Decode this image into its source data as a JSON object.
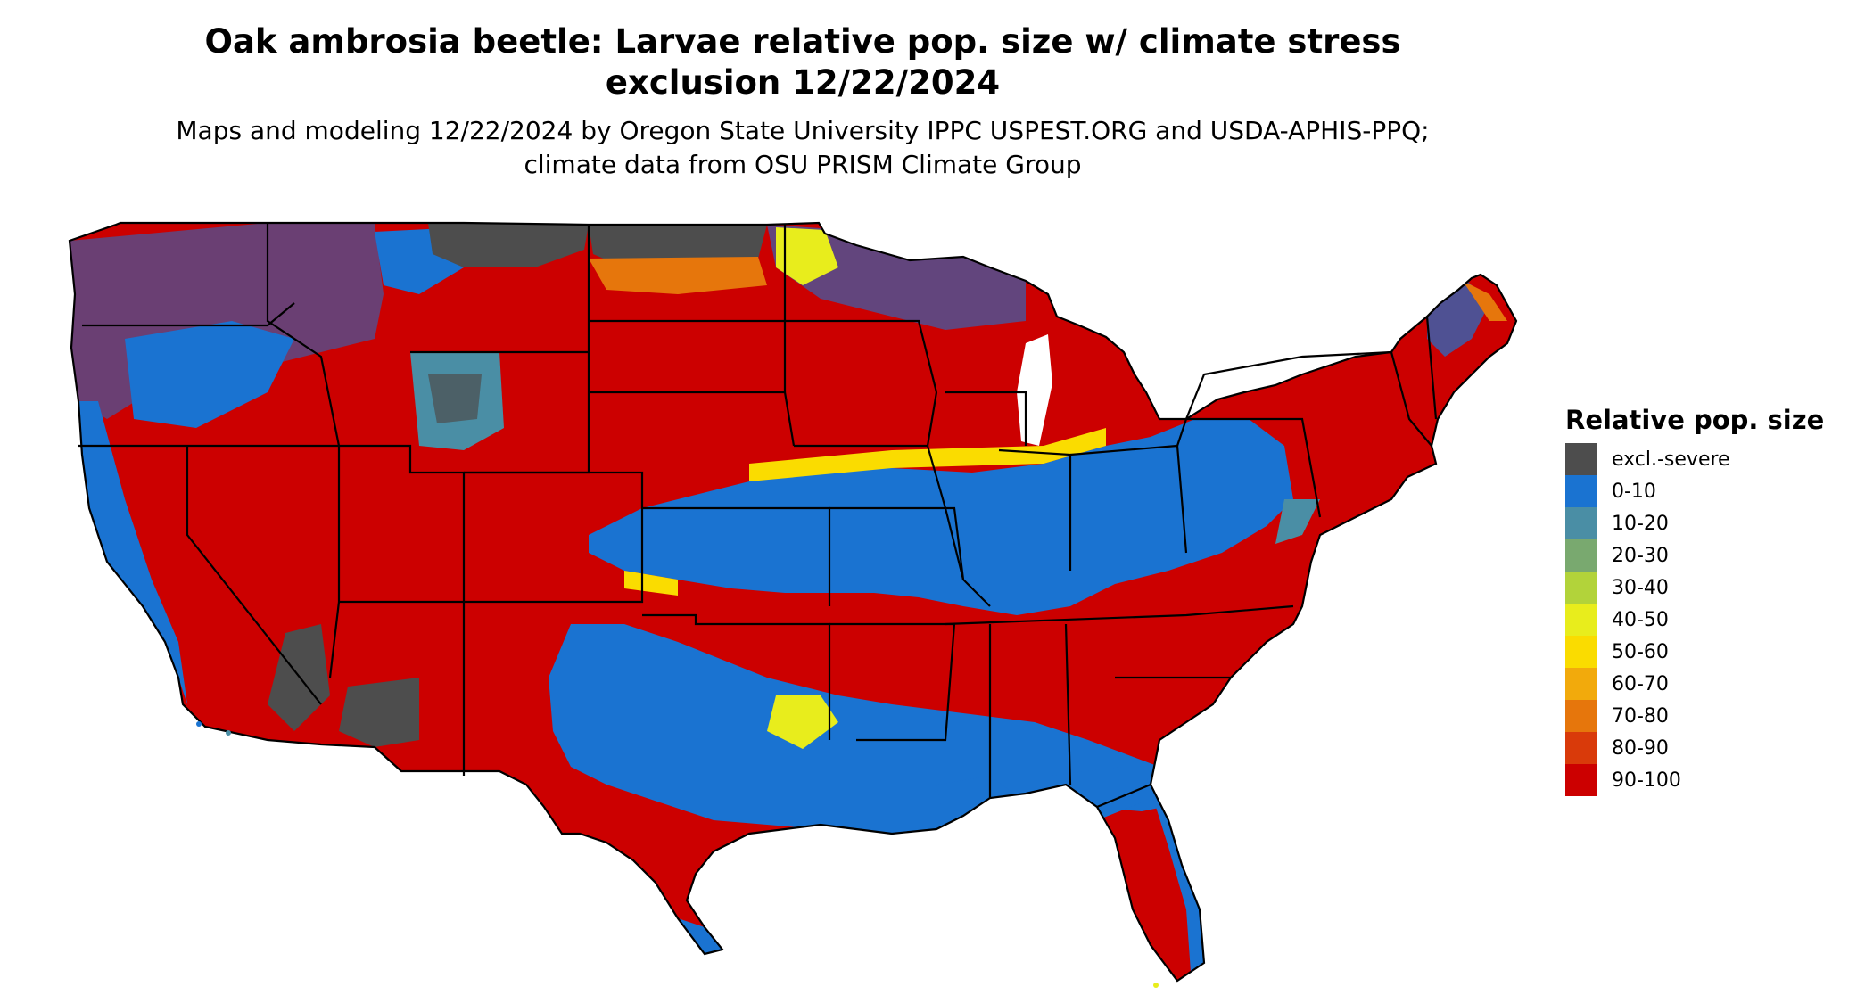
{
  "title": "Oak ambrosia beetle: Larvae relative pop. size w/ climate stress exclusion 12/22/2024",
  "subtitle": "Maps and modeling 12/22/2024 by Oregon State University IPPC USPEST.ORG and USDA-APHIS-PPQ; climate data from OSU PRISM Climate Group",
  "legend": {
    "title": "Relative pop. size",
    "items": [
      {
        "label": "excl.-severe",
        "color": "#4d4d4d"
      },
      {
        "label": "0-10",
        "color": "#1a73d1"
      },
      {
        "label": "10-20",
        "color": "#4a8ea5"
      },
      {
        "label": "20-30",
        "color": "#79a96f"
      },
      {
        "label": "30-40",
        "color": "#b2d33a"
      },
      {
        "label": "40-50",
        "color": "#e8ed1c"
      },
      {
        "label": "50-60",
        "color": "#fadc00"
      },
      {
        "label": "60-70",
        "color": "#f2aa0c"
      },
      {
        "label": "70-80",
        "color": "#e6760c"
      },
      {
        "label": "80-90",
        "color": "#d93a0a"
      },
      {
        "label": "90-100",
        "color": "#cc0000"
      }
    ]
  },
  "map": {
    "colors": {
      "excluded": "#4d4d4d",
      "low": "#1a73d1",
      "mid": "#4a8ea5",
      "yellow": "#fadc00",
      "orange": "#e6760c",
      "high": "#cc0000",
      "border": "#000000"
    }
  }
}
